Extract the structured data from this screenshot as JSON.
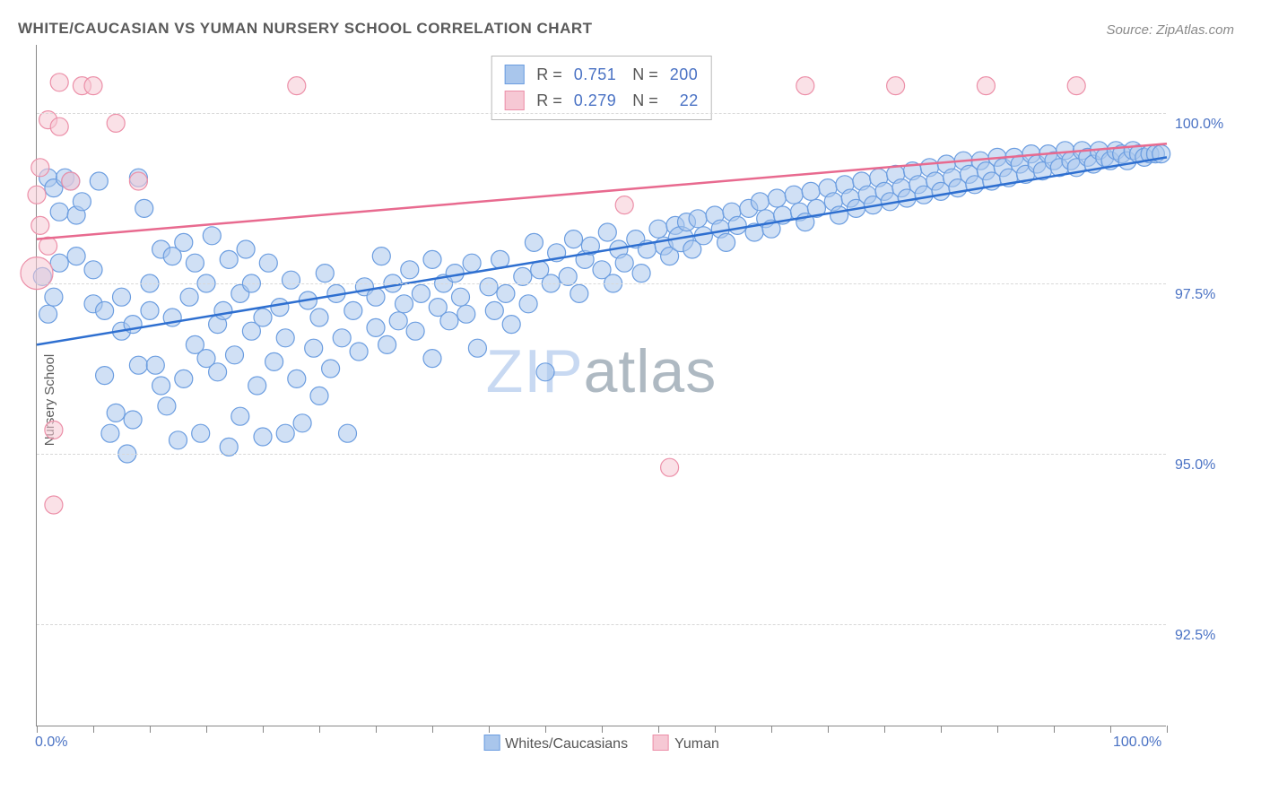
{
  "title": "WHITE/CAUCASIAN VS YUMAN NURSERY SCHOOL CORRELATION CHART",
  "source_label": "Source: ZipAtlas.com",
  "ylabel": "Nursery School",
  "watermark": {
    "part1": "ZIP",
    "part2": "atlas"
  },
  "chart": {
    "type": "scatter-with-regression",
    "background_color": "#ffffff",
    "grid_color": "#d8d8d8",
    "axis_color": "#888888",
    "text_color": "#5a5a5a",
    "tick_label_color": "#4a72c4",
    "label_fontsize": 15,
    "tick_fontsize": 16,
    "xlim": [
      0,
      100
    ],
    "ylim": [
      91.0,
      101.0
    ],
    "x_ticks_minor": [
      0,
      5,
      10,
      15,
      20,
      25,
      30,
      35,
      40,
      45,
      50,
      55,
      60,
      65,
      70,
      75,
      80,
      85,
      90,
      95,
      100
    ],
    "x_tick_labels": [
      {
        "value": 0,
        "label": "0.0%"
      },
      {
        "value": 100,
        "label": "100.0%"
      }
    ],
    "y_grid": [
      {
        "value": 92.5,
        "label": "92.5%"
      },
      {
        "value": 95.0,
        "label": "95.0%"
      },
      {
        "value": 97.5,
        "label": "97.5%"
      },
      {
        "value": 100.0,
        "label": "100.0%"
      }
    ],
    "series": [
      {
        "name": "Whites/Caucasians",
        "color_fill": "#a9c6ec",
        "color_stroke": "#6b9de0",
        "line_color": "#2e6fd0",
        "fill_opacity": 0.55,
        "marker_r": 10,
        "line_width": 2.5,
        "R": "0.751",
        "N": "200",
        "regression": {
          "x1": 0,
          "y1": 96.6,
          "x2": 100,
          "y2": 99.35
        },
        "points": [
          [
            0.5,
            97.6,
            10
          ],
          [
            1,
            99.05,
            10
          ],
          [
            1,
            97.05,
            10
          ],
          [
            1.5,
            97.3,
            10
          ],
          [
            1.5,
            98.9,
            10
          ],
          [
            2,
            98.55,
            10
          ],
          [
            2,
            97.8,
            10
          ],
          [
            2.5,
            99.05,
            10
          ],
          [
            3,
            99.0,
            10
          ],
          [
            3.5,
            98.5,
            10
          ],
          [
            3.5,
            97.9,
            10
          ],
          [
            4,
            98.7,
            10
          ],
          [
            5,
            97.7,
            10
          ],
          [
            5,
            97.2,
            10
          ],
          [
            5.5,
            99.0,
            10
          ],
          [
            6,
            96.15,
            10
          ],
          [
            6,
            97.1,
            10
          ],
          [
            6.5,
            95.3,
            10
          ],
          [
            7,
            95.6,
            10
          ],
          [
            7.5,
            96.8,
            10
          ],
          [
            7.5,
            97.3,
            10
          ],
          [
            8,
            95.0,
            10
          ],
          [
            8.5,
            96.9,
            10
          ],
          [
            8.5,
            95.5,
            10
          ],
          [
            9,
            99.05,
            10
          ],
          [
            9,
            96.3,
            10
          ],
          [
            9.5,
            98.6,
            10
          ],
          [
            10,
            97.1,
            10
          ],
          [
            10,
            97.5,
            10
          ],
          [
            10.5,
            96.3,
            10
          ],
          [
            11,
            98.0,
            10
          ],
          [
            11,
            96.0,
            10
          ],
          [
            11.5,
            95.7,
            10
          ],
          [
            12,
            97.0,
            10
          ],
          [
            12,
            97.9,
            10
          ],
          [
            12.5,
            95.2,
            10
          ],
          [
            13,
            96.1,
            10
          ],
          [
            13,
            98.1,
            10
          ],
          [
            13.5,
            97.3,
            10
          ],
          [
            14,
            97.8,
            10
          ],
          [
            14,
            96.6,
            10
          ],
          [
            14.5,
            95.3,
            10
          ],
          [
            15,
            96.4,
            10
          ],
          [
            15,
            97.5,
            10
          ],
          [
            15.5,
            98.2,
            10
          ],
          [
            16,
            96.9,
            10
          ],
          [
            16,
            96.2,
            10
          ],
          [
            16.5,
            97.1,
            10
          ],
          [
            17,
            97.85,
            10
          ],
          [
            17,
            95.1,
            10
          ],
          [
            17.5,
            96.45,
            10
          ],
          [
            18,
            97.35,
            10
          ],
          [
            18,
            95.55,
            10
          ],
          [
            18.5,
            98.0,
            10
          ],
          [
            19,
            96.8,
            10
          ],
          [
            19,
            97.5,
            10
          ],
          [
            19.5,
            96.0,
            10
          ],
          [
            20,
            95.25,
            10
          ],
          [
            20,
            97.0,
            10
          ],
          [
            20.5,
            97.8,
            10
          ],
          [
            21,
            96.35,
            10
          ],
          [
            21.5,
            97.15,
            10
          ],
          [
            22,
            95.3,
            10
          ],
          [
            22,
            96.7,
            10
          ],
          [
            22.5,
            97.55,
            10
          ],
          [
            23,
            96.1,
            10
          ],
          [
            23.5,
            95.45,
            10
          ],
          [
            24,
            97.25,
            10
          ],
          [
            24.5,
            96.55,
            10
          ],
          [
            25,
            97.0,
            10
          ],
          [
            25,
            95.85,
            10
          ],
          [
            25.5,
            97.65,
            10
          ],
          [
            26,
            96.25,
            10
          ],
          [
            26.5,
            97.35,
            10
          ],
          [
            27,
            96.7,
            10
          ],
          [
            27.5,
            95.3,
            10
          ],
          [
            28,
            97.1,
            10
          ],
          [
            28.5,
            96.5,
            10
          ],
          [
            29,
            97.45,
            10
          ],
          [
            30,
            96.85,
            10
          ],
          [
            30,
            97.3,
            10
          ],
          [
            30.5,
            97.9,
            10
          ],
          [
            31,
            96.6,
            10
          ],
          [
            31.5,
            97.5,
            10
          ],
          [
            32,
            96.95,
            10
          ],
          [
            32.5,
            97.2,
            10
          ],
          [
            33,
            97.7,
            10
          ],
          [
            33.5,
            96.8,
            10
          ],
          [
            34,
            97.35,
            10
          ],
          [
            35,
            96.4,
            10
          ],
          [
            35,
            97.85,
            10
          ],
          [
            35.5,
            97.15,
            10
          ],
          [
            36,
            97.5,
            10
          ],
          [
            36.5,
            96.95,
            10
          ],
          [
            37,
            97.65,
            10
          ],
          [
            37.5,
            97.3,
            10
          ],
          [
            38,
            97.05,
            10
          ],
          [
            38.5,
            97.8,
            10
          ],
          [
            39,
            96.55,
            10
          ],
          [
            40,
            97.45,
            10
          ],
          [
            40.5,
            97.1,
            10
          ],
          [
            41,
            97.85,
            10
          ],
          [
            41.5,
            97.35,
            10
          ],
          [
            42,
            96.9,
            10
          ],
          [
            43,
            97.6,
            10
          ],
          [
            43.5,
            97.2,
            10
          ],
          [
            44,
            98.1,
            10
          ],
          [
            44.5,
            97.7,
            10
          ],
          [
            45,
            96.2,
            10
          ],
          [
            45.5,
            97.5,
            10
          ],
          [
            46,
            97.95,
            10
          ],
          [
            47,
            97.6,
            10
          ],
          [
            47.5,
            98.15,
            10
          ],
          [
            48,
            97.35,
            10
          ],
          [
            48.5,
            97.85,
            10
          ],
          [
            49,
            98.05,
            10
          ],
          [
            50,
            97.7,
            10
          ],
          [
            50.5,
            98.25,
            10
          ],
          [
            51,
            97.5,
            10
          ],
          [
            51.5,
            98.0,
            10
          ],
          [
            52,
            97.8,
            10
          ],
          [
            53,
            98.15,
            10
          ],
          [
            53.5,
            97.65,
            10
          ],
          [
            54,
            98.0,
            10
          ],
          [
            55,
            98.3,
            10
          ],
          [
            55.5,
            98.05,
            10
          ],
          [
            56,
            97.9,
            10
          ],
          [
            56.5,
            98.35,
            10
          ],
          [
            57,
            98.15,
            14
          ],
          [
            57.5,
            98.4,
            10
          ],
          [
            58,
            98.0,
            10
          ],
          [
            58.5,
            98.45,
            10
          ],
          [
            59,
            98.2,
            10
          ],
          [
            60,
            98.5,
            10
          ],
          [
            60.5,
            98.3,
            10
          ],
          [
            61,
            98.1,
            10
          ],
          [
            61.5,
            98.55,
            10
          ],
          [
            62,
            98.35,
            10
          ],
          [
            63,
            98.6,
            10
          ],
          [
            63.5,
            98.25,
            10
          ],
          [
            64,
            98.7,
            10
          ],
          [
            64.5,
            98.45,
            10
          ],
          [
            65,
            98.3,
            10
          ],
          [
            65.5,
            98.75,
            10
          ],
          [
            66,
            98.5,
            10
          ],
          [
            67,
            98.8,
            10
          ],
          [
            67.5,
            98.55,
            10
          ],
          [
            68,
            98.4,
            10
          ],
          [
            68.5,
            98.85,
            10
          ],
          [
            69,
            98.6,
            10
          ],
          [
            70,
            98.9,
            10
          ],
          [
            70.5,
            98.7,
            10
          ],
          [
            71,
            98.5,
            10
          ],
          [
            71.5,
            98.95,
            10
          ],
          [
            72,
            98.75,
            10
          ],
          [
            72.5,
            98.6,
            10
          ],
          [
            73,
            99.0,
            10
          ],
          [
            73.5,
            98.8,
            10
          ],
          [
            74,
            98.65,
            10
          ],
          [
            74.5,
            99.05,
            10
          ],
          [
            75,
            98.85,
            10
          ],
          [
            75.5,
            98.7,
            10
          ],
          [
            76,
            99.1,
            10
          ],
          [
            76.5,
            98.9,
            10
          ],
          [
            77,
            98.75,
            10
          ],
          [
            77.5,
            99.15,
            10
          ],
          [
            78,
            98.95,
            10
          ],
          [
            78.5,
            98.8,
            10
          ],
          [
            79,
            99.2,
            10
          ],
          [
            79.5,
            99.0,
            10
          ],
          [
            80,
            98.85,
            10
          ],
          [
            80.5,
            99.25,
            10
          ],
          [
            81,
            99.05,
            10
          ],
          [
            81.5,
            98.9,
            10
          ],
          [
            82,
            99.3,
            10
          ],
          [
            82.5,
            99.1,
            10
          ],
          [
            83,
            98.95,
            10
          ],
          [
            83.5,
            99.3,
            10
          ],
          [
            84,
            99.15,
            10
          ],
          [
            84.5,
            99.0,
            10
          ],
          [
            85,
            99.35,
            10
          ],
          [
            85.5,
            99.2,
            10
          ],
          [
            86,
            99.05,
            10
          ],
          [
            86.5,
            99.35,
            10
          ],
          [
            87,
            99.25,
            10
          ],
          [
            87.5,
            99.1,
            10
          ],
          [
            88,
            99.4,
            10
          ],
          [
            88.5,
            99.25,
            10
          ],
          [
            89,
            99.15,
            10
          ],
          [
            89.5,
            99.4,
            10
          ],
          [
            90,
            99.3,
            10
          ],
          [
            90.5,
            99.2,
            10
          ],
          [
            91,
            99.45,
            10
          ],
          [
            91.5,
            99.3,
            10
          ],
          [
            92,
            99.2,
            10
          ],
          [
            92.5,
            99.45,
            10
          ],
          [
            93,
            99.35,
            10
          ],
          [
            93.5,
            99.25,
            10
          ],
          [
            94,
            99.45,
            10
          ],
          [
            94.5,
            99.35,
            10
          ],
          [
            95,
            99.3,
            10
          ],
          [
            95.5,
            99.45,
            10
          ],
          [
            96,
            99.4,
            10
          ],
          [
            96.5,
            99.3,
            10
          ],
          [
            97,
            99.45,
            10
          ],
          [
            97.5,
            99.4,
            10
          ],
          [
            98,
            99.35,
            10
          ],
          [
            98.5,
            99.4,
            10
          ],
          [
            99,
            99.4,
            10
          ],
          [
            99.5,
            99.4,
            10
          ]
        ]
      },
      {
        "name": "Yuman",
        "color_fill": "#f6c8d4",
        "color_stroke": "#ec8fa8",
        "line_color": "#e86a8f",
        "fill_opacity": 0.55,
        "marker_r": 10,
        "line_width": 2.5,
        "R": "0.279",
        "N": "  22",
        "regression": {
          "x1": 0,
          "y1": 98.15,
          "x2": 100,
          "y2": 99.55
        },
        "points": [
          [
            0,
            98.8,
            10
          ],
          [
            0,
            97.65,
            18
          ],
          [
            0.3,
            98.35,
            10
          ],
          [
            0.3,
            99.2,
            10
          ],
          [
            1,
            98.05,
            10
          ],
          [
            1,
            99.9,
            10
          ],
          [
            1.5,
            94.25,
            10
          ],
          [
            1.5,
            95.35,
            10
          ],
          [
            2,
            99.8,
            10
          ],
          [
            2,
            100.45,
            10
          ],
          [
            3,
            99.0,
            10
          ],
          [
            4,
            100.4,
            10
          ],
          [
            5,
            100.4,
            10
          ],
          [
            7,
            99.85,
            10
          ],
          [
            9,
            99.0,
            10
          ],
          [
            23,
            100.4,
            10
          ],
          [
            52,
            98.65,
            10
          ],
          [
            56,
            94.8,
            10
          ],
          [
            68,
            100.4,
            10
          ],
          [
            76,
            100.4,
            10
          ],
          [
            84,
            100.4,
            10
          ],
          [
            92,
            100.4,
            10
          ]
        ]
      }
    ]
  },
  "bottom_legend": [
    {
      "label": "Whites/Caucasians",
      "fill": "#a9c6ec",
      "stroke": "#6b9de0"
    },
    {
      "label": "Yuman",
      "fill": "#f6c8d4",
      "stroke": "#ec8fa8"
    }
  ]
}
